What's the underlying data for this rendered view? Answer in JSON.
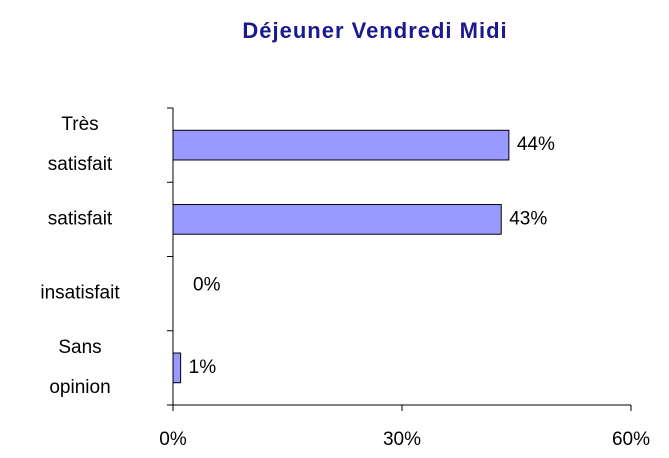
{
  "chart_data": {
    "type": "bar",
    "orientation": "horizontal",
    "title": "Déjeuner Vendredi Midi",
    "categories": [
      "Très satisfait",
      "satisfait",
      "insatisfait",
      "Sans opinion"
    ],
    "values": [
      44,
      43,
      0,
      1
    ],
    "value_labels": [
      "44%",
      "43%",
      "0%",
      "1%"
    ],
    "color": "#9999ff",
    "xlim": [
      0,
      60
    ],
    "xticks": [
      {
        "value": 0,
        "label": "0%"
      },
      {
        "value": 30,
        "label": "30%"
      },
      {
        "value": 60,
        "label": "60%"
      }
    ],
    "grid": false
  }
}
